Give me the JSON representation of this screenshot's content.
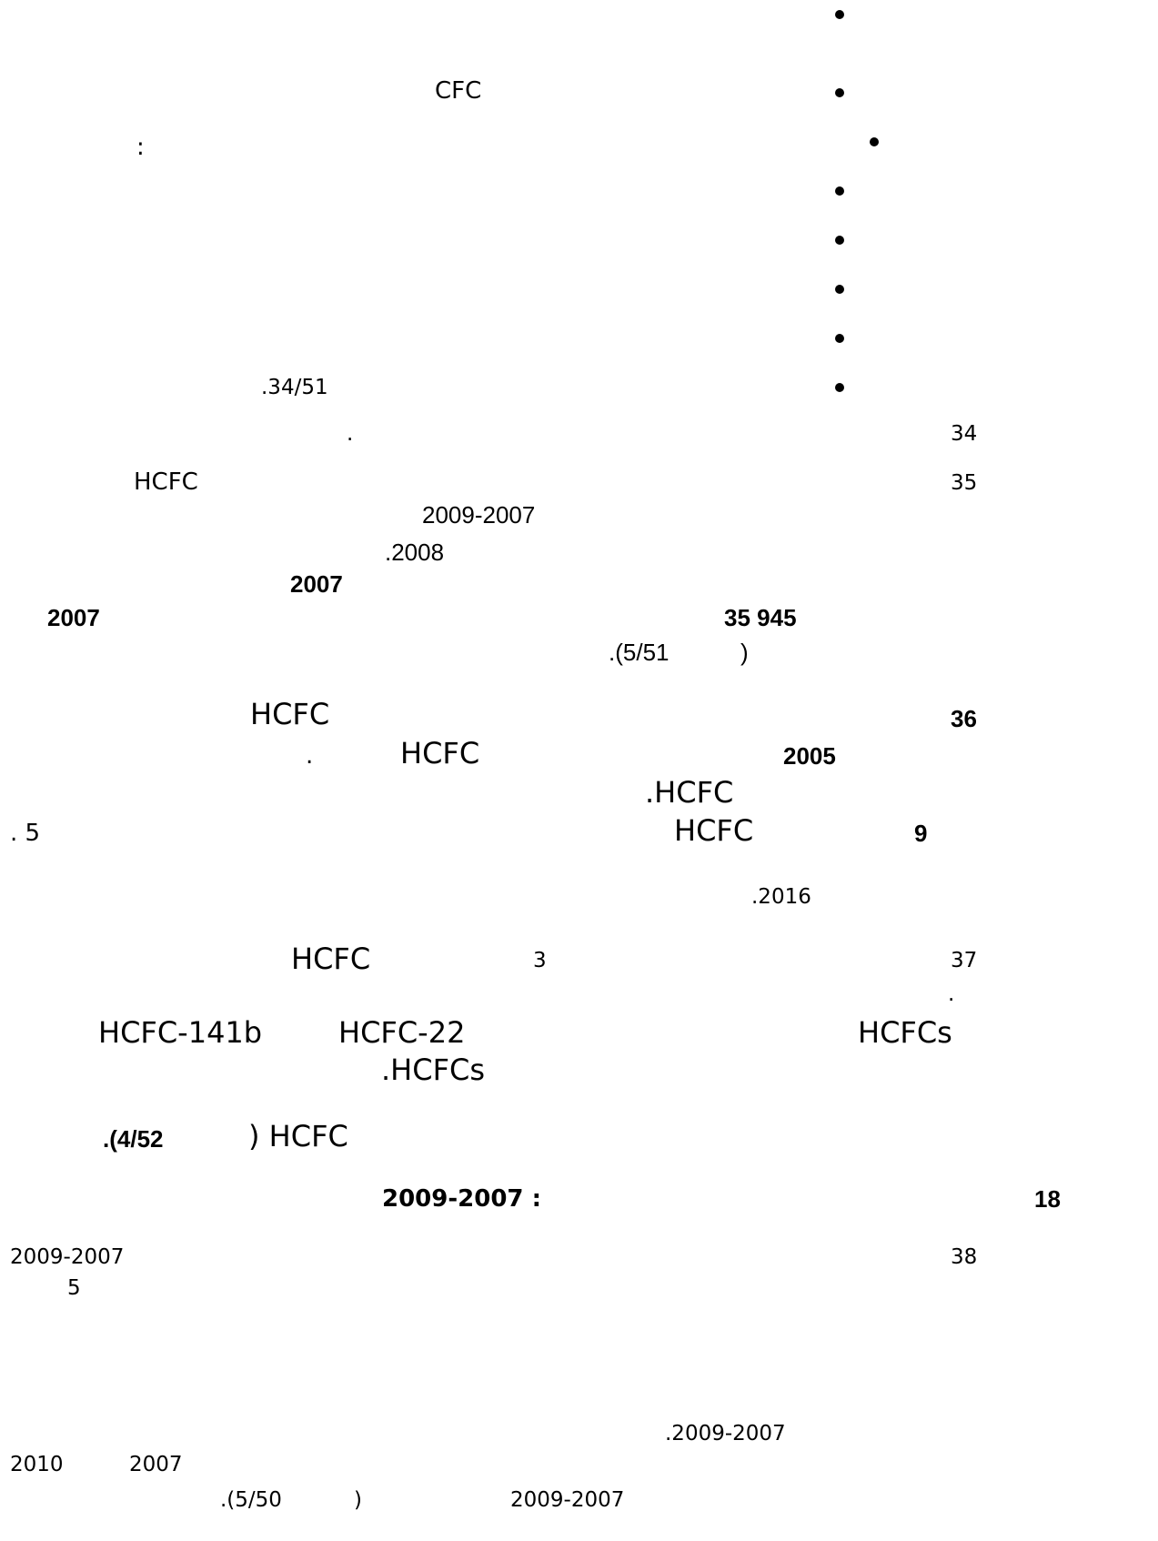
{
  "bullets": [
    "",
    "",
    "",
    "",
    "",
    "",
    "",
    ""
  ],
  "text": {
    "cfc": "CFC",
    "colon": ":",
    "ref_34_51": ".34/51",
    "dot_a": ".",
    "para34": "34",
    "para35": "35",
    "hcfc_35": "HCFC",
    "years_2009_2007_a": "2009-2007",
    "y2008": ".2008",
    "y2007_a": "2007",
    "y2007_b": "2007",
    "num_35_945": "35 945",
    "ref_5_51_open": ".(5/51",
    "ref_5_51_close": ")",
    "para36": "36",
    "hcfc_36": "HCFC",
    "y2005": "2005",
    "hcfc_36b": "HCFC",
    "dot_b": ".",
    "hcfc_36c": ".HCFC",
    "num9": "9",
    "hcfc_36d": "HCFC",
    "five_dot": ". 5",
    "y2016": ".2016",
    "para37": "37",
    "num3": "3",
    "hcfc_37": "HCFC",
    "dot_c": ".",
    "hcfcs_a": "HCFCs",
    "hcfc22": "HCFC-22",
    "hcfc141b": "HCFC-141b",
    "hcfcs_b": ".HCFCs",
    "ref_4_52_open": ".(4/52",
    "ref_4_52_close": ") HCFC",
    "heading_num": "18",
    "heading_years": "2009-2007 :",
    "para38": "38",
    "years_2009_2007_b": "2009-2007",
    "five_b": "5",
    "years_2009_2007_c": ".2009-2007",
    "y2007_c": "2007",
    "y2010": "2010",
    "years_2009_2007_d": "2009-2007",
    "ref_5_50_open": ".(5/50",
    "ref_5_50_close": ")"
  }
}
